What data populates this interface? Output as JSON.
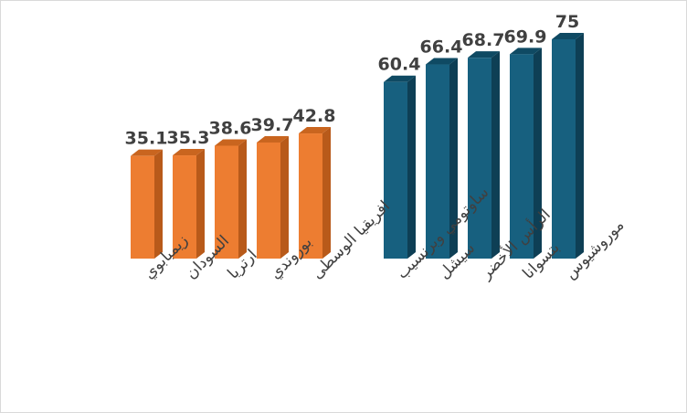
{
  "chart_data": {
    "type": "bar",
    "style": "3d-column",
    "categories": [
      "زيمبابوي",
      "السودان",
      "ارتريا",
      "بوروندي",
      "افريقيا الوسطى",
      "ساوتومي وبرنسيب",
      "سيشل",
      "الرأس الأخضر",
      "بتسوانا",
      "موروشيوس"
    ],
    "values": [
      35.1,
      35.3,
      38.6,
      39.7,
      42.8,
      60.4,
      66.4,
      68.7,
      69.9,
      75
    ],
    "value_labels": [
      "35.1",
      "35.3",
      "38.6",
      "39.7",
      "42.8",
      "60.4",
      "66.4",
      "68.7",
      "69.9",
      "75"
    ],
    "groups": [
      {
        "indices": [
          0,
          1,
          2,
          3,
          4
        ],
        "color": "#ED7D31",
        "side_color": "#B85A1A",
        "top_color": "#C9651F"
      },
      {
        "indices": [
          5,
          6,
          7,
          8,
          9
        ],
        "color": "#17607F",
        "side_color": "#0E3F55",
        "top_color": "#0F4A63"
      }
    ],
    "title": "",
    "xlabel": "",
    "ylabel": "",
    "ylim": [
      0,
      80
    ],
    "grid": false,
    "legend": "none"
  }
}
